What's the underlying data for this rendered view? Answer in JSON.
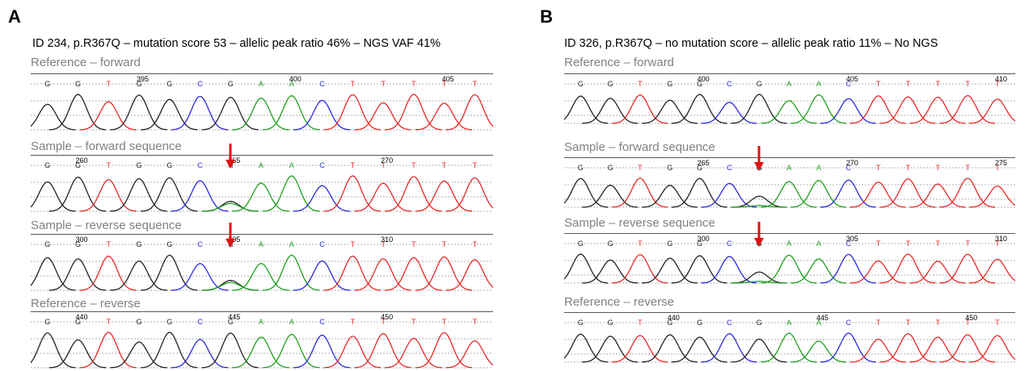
{
  "panels": [
    {
      "letter": "A",
      "caption": "ID 234, p.R367Q – mutation score 53 – allelic peak ratio 46% – NGS VAF 41%",
      "tracks": [
        {
          "label": "Reference – forward",
          "bases": [
            "G",
            "G",
            "T",
            "G",
            "G",
            "C",
            "G",
            "A",
            "A",
            "C",
            "T",
            "T",
            "T",
            "T",
            "T"
          ],
          "positions": [
            {
              "i": 3,
              "text": "395"
            },
            {
              "i": 8,
              "text": "400"
            },
            {
              "i": 13,
              "text": "405"
            }
          ],
          "special": null
        },
        {
          "label": "Sample – forward sequence",
          "bases": [
            "G",
            "G",
            "T",
            "G",
            "G",
            "C",
            "N",
            "A",
            "A",
            "C",
            "T",
            "T",
            "T",
            "T",
            "T"
          ],
          "positions": [
            {
              "i": 1,
              "text": "260"
            },
            {
              "i": 6,
              "text": "265"
            },
            {
              "i": 11,
              "text": "270"
            }
          ],
          "special": "het",
          "arrow_index": 6
        },
        {
          "label": "Sample – reverse sequence",
          "bases": [
            "G",
            "G",
            "T",
            "G",
            "G",
            "C",
            "N",
            "A",
            "A",
            "C",
            "T",
            "T",
            "T",
            "T",
            "T"
          ],
          "positions": [
            {
              "i": 1,
              "text": "300"
            },
            {
              "i": 6,
              "text": "305"
            },
            {
              "i": 11,
              "text": "310"
            }
          ],
          "special": "het",
          "arrow_index": 6
        },
        {
          "label": "Reference – reverse",
          "bases": [
            "G",
            "G",
            "T",
            "G",
            "G",
            "C",
            "G",
            "A",
            "A",
            "C",
            "T",
            "T",
            "T",
            "T",
            "T"
          ],
          "positions": [
            {
              "i": 1,
              "text": "440"
            },
            {
              "i": 6,
              "text": "445"
            },
            {
              "i": 11,
              "text": "450"
            }
          ],
          "special": null
        }
      ]
    },
    {
      "letter": "B",
      "caption": "ID 326, p.R367Q – no mutation score – allelic peak ratio 11% – No NGS",
      "tracks": [
        {
          "label": "Reference – forward",
          "bases": [
            "G",
            "G",
            "T",
            "G",
            "G",
            "C",
            "G",
            "A",
            "A",
            "C",
            "T",
            "T",
            "T",
            "T",
            "T"
          ],
          "positions": [
            {
              "i": 4,
              "text": "400"
            },
            {
              "i": 9,
              "text": "405"
            },
            {
              "i": 14,
              "text": "410"
            }
          ],
          "special": null
        },
        {
          "label": "Sample – forward sequence",
          "bases": [
            "G",
            "G",
            "T",
            "G",
            "G",
            "C",
            "G",
            "A",
            "A",
            "C",
            "T",
            "T",
            "T",
            "T",
            "T"
          ],
          "positions": [
            {
              "i": 4,
              "text": "265"
            },
            {
              "i": 9,
              "text": "270"
            },
            {
              "i": 14,
              "text": "275"
            }
          ],
          "special": "small",
          "arrow_index": 6
        },
        {
          "label": "Sample – reverse sequence",
          "bases": [
            "G",
            "G",
            "T",
            "G",
            "G",
            "C",
            "G",
            "A",
            "A",
            "C",
            "T",
            "T",
            "T",
            "T",
            "T"
          ],
          "positions": [
            {
              "i": 4,
              "text": "300"
            },
            {
              "i": 9,
              "text": "305"
            },
            {
              "i": 14,
              "text": "310"
            }
          ],
          "special": "small",
          "arrow_index": 6
        },
        {
          "label": "Reference – reverse",
          "bases": [
            "G",
            "G",
            "T",
            "G",
            "G",
            "C",
            "G",
            "A",
            "A",
            "C",
            "T",
            "T",
            "T",
            "T",
            "T"
          ],
          "positions": [
            {
              "i": 3,
              "text": "440"
            },
            {
              "i": 8,
              "text": "445"
            },
            {
              "i": 13,
              "text": "450"
            }
          ],
          "special": null
        }
      ]
    }
  ],
  "colors": {
    "A": "#1ea01e",
    "C": "#2a2ae0",
    "G": "#222222",
    "T": "#e82828",
    "N": "#555555",
    "arrow": "#e01010"
  }
}
